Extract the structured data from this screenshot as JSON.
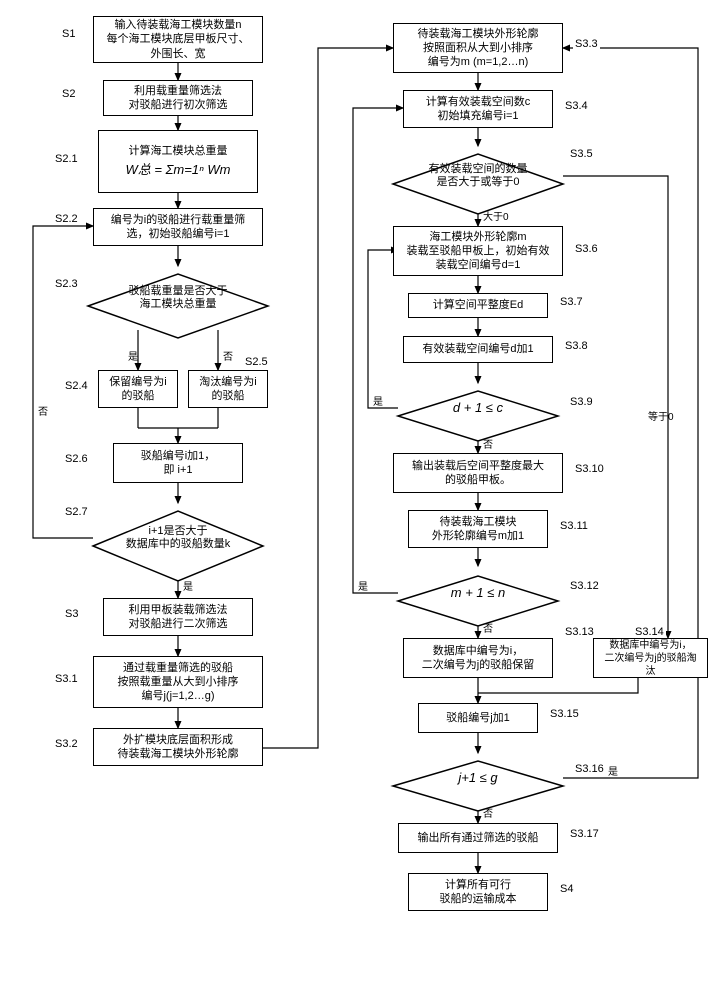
{
  "nodes": {
    "s1": "输入待装载海工模块数量n\n每个海工模块底层甲板尺寸、\n外围长、宽",
    "s2": "利用载重量筛选法\n对驳船进行初次筛选",
    "s21": "计算海工模块总重量",
    "s21f": "W总 = Σm=1ⁿ Wm",
    "s22": "编号为i的驳船进行载重量筛\n选，初始驳船编号i=1",
    "s23": "驳船载重量是否大于\n海工模块总重量",
    "s24": "保留编号为i\n的驳船",
    "s25": "淘汰编号为i\n的驳船",
    "s26": "驳船编号i加1，\n即 i+1",
    "s27": "i+1是否大于\n数据库中的驳船数量k",
    "s3": "利用甲板装载筛选法\n对驳船进行二次筛选",
    "s31": "通过载重量筛选的驳船\n按照载重量从大到小排序\n编号j(j=1,2…g)",
    "s32": "外扩模块底层面积形成\n待装载海工模块外形轮廓",
    "s33": "待装载海工模块外形轮廓\n按照面积从大到小排序\n编号为m (m=1,2…n)",
    "s34": "计算有效装载空间数c\n初始填充编号i=1",
    "s35": "有效装载空间的数量\n是否大于或等于0",
    "s36": "海工模块外形轮廓m\n装载至驳船甲板上，初始有效\n装载空间编号d=1",
    "s37": "计算空间平整度Ed",
    "s38": "有效装载空间编号d加1",
    "s39": "d + 1 ≤ c",
    "s310": "输出装载后空间平整度最大\n的驳船甲板。",
    "s311": "待装载海工模块\n外形轮廓编号m加1",
    "s312": "m + 1 ≤ n",
    "s313": "数据库中编号为i，\n二次编号为j的驳船保留",
    "s314": "数据库中编号为i，\n二次编号为j的驳船淘汰",
    "s315": "驳船编号j加1",
    "s316": "j+1 ≤ g",
    "s317": "输出所有通过筛选的驳船",
    "s4": "计算所有可行\n驳船的运输成本"
  },
  "side_labels": {
    "s1": "S1",
    "s2": "S2",
    "s21": "S2.1",
    "s22": "S2.2",
    "s23": "S2.3",
    "s24": "S2.4",
    "s25": "S2.5",
    "s26": "S2.6",
    "s27": "S2.7",
    "s3": "S3",
    "s31": "S3.1",
    "s32": "S3.2",
    "s33": "S3.3",
    "s34": "S3.4",
    "s35": "S3.5",
    "s36": "S3.6",
    "s37": "S3.7",
    "s38": "S3.8",
    "s39": "S3.9",
    "s310": "S3.10",
    "s311": "S3.11",
    "s312": "S3.12",
    "s313": "S3.13",
    "s314": "S3.14",
    "s315": "S3.15",
    "s316": "S3.16",
    "s317": "S3.17",
    "s4": "S4"
  },
  "edge_labels": {
    "yes": "是",
    "no": "否",
    "gt0": "大于0",
    "eq0": "等于0"
  },
  "style": {
    "node_border": "#000000",
    "bg": "#ffffff",
    "font_size": 11,
    "diamond_stroke": "#000000"
  }
}
